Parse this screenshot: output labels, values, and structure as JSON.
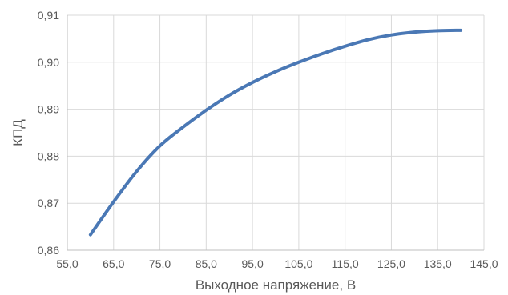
{
  "chart_data": {
    "type": "line",
    "title": "",
    "xlabel": "Выходное напряжение, В",
    "ylabel": "КПД",
    "xlim": [
      55,
      145
    ],
    "ylim": [
      0.86,
      0.91
    ],
    "x_ticks": [
      55,
      65,
      75,
      85,
      95,
      105,
      115,
      125,
      135,
      145
    ],
    "x_tick_labels": [
      "55,0",
      "65,0",
      "75,0",
      "85,0",
      "95,0",
      "105,0",
      "115,0",
      "125,0",
      "135,0",
      "145,0"
    ],
    "y_ticks": [
      0.86,
      0.87,
      0.88,
      0.89,
      0.9,
      0.91
    ],
    "y_tick_labels": [
      "0,86",
      "0,87",
      "0,88",
      "0,89",
      "0,90",
      "0,91"
    ],
    "grid": true,
    "legend": "none",
    "series": [
      {
        "color": "#4a78b5",
        "x": [
          60,
          65,
          70,
          75,
          80,
          85,
          90,
          95,
          100,
          105,
          110,
          115,
          120,
          125,
          130,
          135,
          140
        ],
        "y": [
          0.8633,
          0.8703,
          0.8768,
          0.8822,
          0.8862,
          0.8898,
          0.893,
          0.8957,
          0.898,
          0.9,
          0.9018,
          0.9034,
          0.9048,
          0.9058,
          0.9064,
          0.9067,
          0.9068
        ]
      }
    ]
  }
}
